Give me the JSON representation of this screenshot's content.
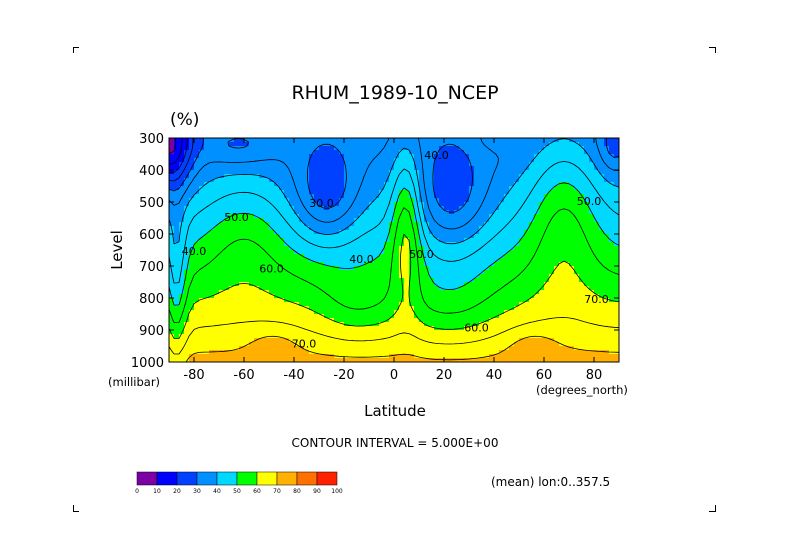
{
  "chart_data": {
    "type": "heatmap",
    "title": "RHUM_1989-10_NCEP",
    "units": "(%)",
    "xlabel": "Latitude",
    "xunits": "(degrees_north)",
    "ylabel": "Level",
    "yunits": "(millibar)",
    "xlim": [
      -90,
      90
    ],
    "ylim": [
      1000,
      300
    ],
    "xticks": [
      -80,
      -60,
      -40,
      -20,
      0,
      20,
      40,
      60,
      80
    ],
    "xtick_labels": [
      "-80",
      "-60",
      "-40",
      "-20",
      "0",
      "20",
      "40",
      "60",
      "80"
    ],
    "yticks": [
      300,
      400,
      500,
      600,
      700,
      800,
      900,
      1000
    ],
    "ytick_labels": [
      "300",
      "400",
      "500",
      "600",
      "700",
      "800",
      "900",
      "1000"
    ],
    "contour_interval_text": "CONTOUR INTERVAL = 5.000E+00",
    "mean_text": "(mean) lon:0..357.5",
    "contour_labels": [
      {
        "text": "50.0",
        "lat": -63,
        "level": 560
      },
      {
        "text": "40.0",
        "lat": -80,
        "level": 665
      },
      {
        "text": "60.0",
        "lat": -49,
        "level": 720
      },
      {
        "text": "70.0",
        "lat": -36,
        "level": 955
      },
      {
        "text": "30.0",
        "lat": -29,
        "level": 515
      },
      {
        "text": "40.0",
        "lat": -13,
        "level": 690
      },
      {
        "text": "40.0",
        "lat": 17,
        "level": 365
      },
      {
        "text": "50.0",
        "lat": 11,
        "level": 675
      },
      {
        "text": "60.0",
        "lat": 33,
        "level": 905
      },
      {
        "text": "50.0",
        "lat": 78,
        "level": 510
      },
      {
        "text": "70.0",
        "lat": 81,
        "level": 815
      }
    ],
    "colorbar": {
      "levels": [
        "0",
        "10",
        "20",
        "30",
        "40",
        "50",
        "60",
        "70",
        "80",
        "90",
        "100"
      ],
      "colors": [
        "#7c00a4",
        "#0000ff",
        "#0040ff",
        "#0090ff",
        "#00d8ff",
        "#00ff00",
        "#ffff00",
        "#ffb000",
        "#ff7000",
        "#ff2000"
      ]
    },
    "value_min": 0,
    "value_max": 100
  }
}
